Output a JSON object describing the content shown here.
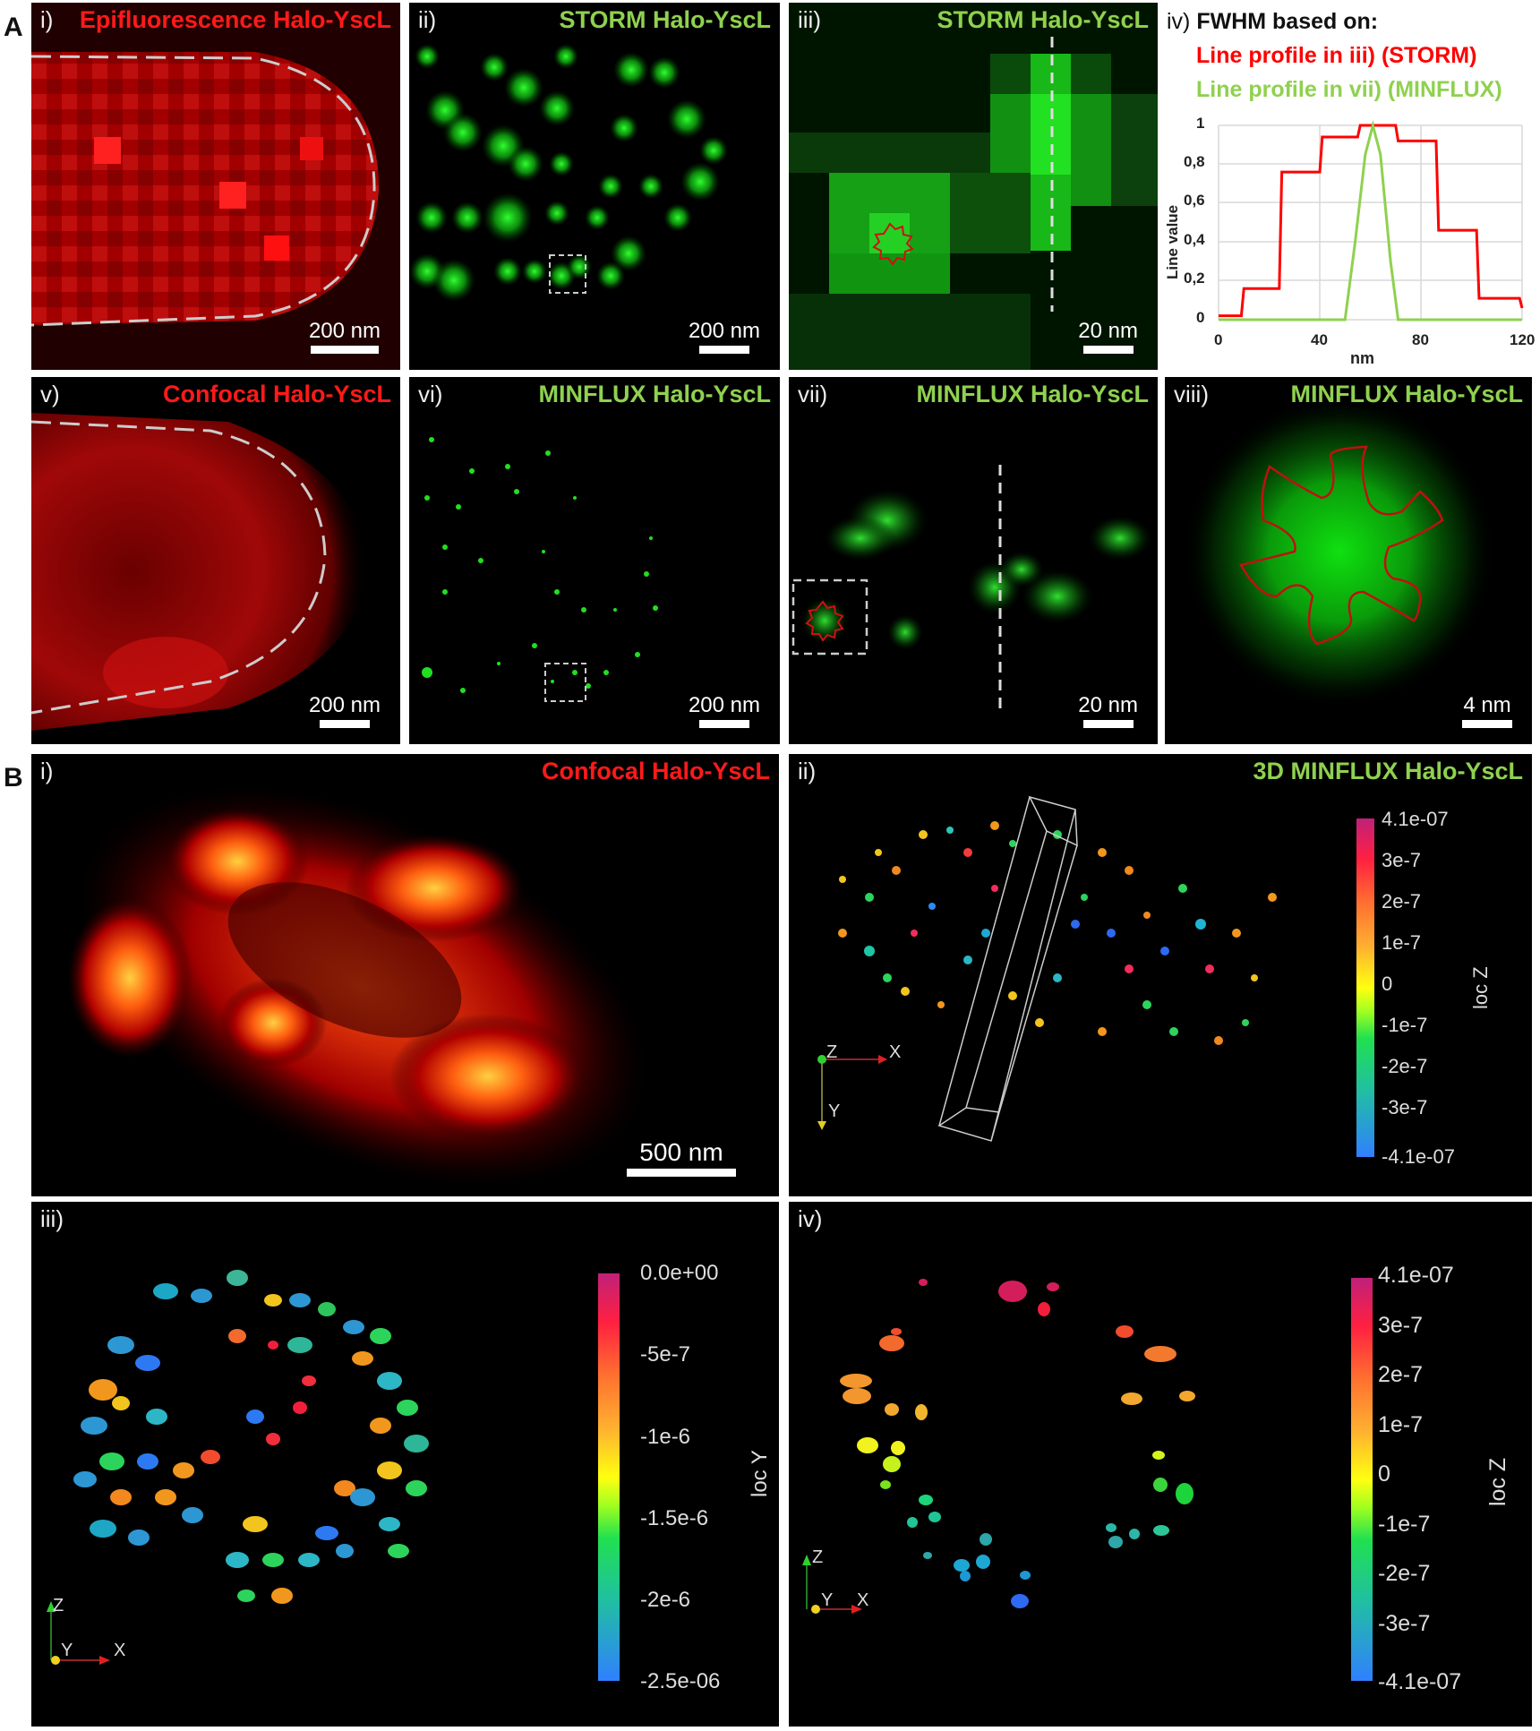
{
  "figure": {
    "section_a_label": "A",
    "section_b_label": "B"
  },
  "panels_a": [
    {
      "id": "i",
      "label": "i)",
      "title": "Epifluorescence Halo-YscL",
      "title_color": "#ff1a1a",
      "scale": "200 nm"
    },
    {
      "id": "ii",
      "label": "ii)",
      "title": "STORM Halo-YscL",
      "title_color": "#8fd14f",
      "scale": "200 nm"
    },
    {
      "id": "iii",
      "label": "iii)",
      "title": "STORM Halo-YscL",
      "title_color": "#8fd14f",
      "scale": "20 nm"
    },
    {
      "id": "v",
      "label": "v)",
      "title": "Confocal Halo-YscL",
      "title_color": "#ff1a1a",
      "scale": "200 nm"
    },
    {
      "id": "vi",
      "label": "vi)",
      "title": "MINFLUX Halo-YscL",
      "title_color": "#8fd14f",
      "scale": "200 nm"
    },
    {
      "id": "vii",
      "label": "vii)",
      "title": "MINFLUX Halo-YscL",
      "title_color": "#8fd14f",
      "scale": "20 nm"
    },
    {
      "id": "viii",
      "label": "viii)",
      "title": "MINFLUX Halo-YscL",
      "title_color": "#8fd14f",
      "scale": "4 nm"
    }
  ],
  "fwhm_panel": {
    "label": "iv)",
    "heading": "FWHM based on:",
    "line1": "Line profile in iii) (STORM)",
    "line2": "Line profile in vii) (MINFLUX)"
  },
  "chart_data": {
    "type": "line",
    "title": "FWHM based on:",
    "xlabel": "nm",
    "ylabel": "Line value",
    "xlim": [
      0,
      120
    ],
    "ylim": [
      0,
      1
    ],
    "xticks": [
      "0",
      "40",
      "80",
      "120"
    ],
    "yticks": [
      "0",
      "0,2",
      "0,4",
      "0,6",
      "0,8",
      "1"
    ],
    "grid": true,
    "series": [
      {
        "name": "Line profile in iii) (STORM)",
        "color": "#ff0000",
        "x": [
          0,
          9,
          10,
          24,
          25,
          40,
          41,
          55,
          56,
          70,
          71,
          86,
          87,
          102,
          103,
          119,
          120
        ],
        "y": [
          0.02,
          0.02,
          0.16,
          0.16,
          0.76,
          0.76,
          0.94,
          0.94,
          1.0,
          1.0,
          0.92,
          0.92,
          0.46,
          0.46,
          0.11,
          0.11,
          0.06
        ]
      },
      {
        "name": "Line profile in vii) (MINFLUX)",
        "color": "#8fd14f",
        "x": [
          0,
          50,
          54,
          58,
          61,
          64,
          68,
          71,
          120
        ],
        "y": [
          0,
          0,
          0.4,
          0.85,
          1.0,
          0.85,
          0.3,
          0,
          0
        ]
      }
    ]
  },
  "panels_b": [
    {
      "id": "i",
      "label": "i)",
      "title": "Confocal Halo-YscL",
      "title_color": "#ff1a1a",
      "scale": "500 nm"
    },
    {
      "id": "ii",
      "label": "ii)",
      "title": "3D MINFLUX Halo-YscL",
      "title_color": "#8fd14f",
      "axes": [
        "Z",
        "X",
        "Y"
      ],
      "colorbar": {
        "title": "loc Z",
        "ticks": [
          "4.1e-07",
          "3e-7",
          "2e-7",
          "1e-7",
          "0",
          "-1e-7",
          "-2e-7",
          "-3e-7",
          "-4.1e-07"
        ]
      }
    },
    {
      "id": "iii",
      "label": "iii)",
      "axes": [
        "Z",
        "Y",
        "X"
      ],
      "colorbar": {
        "title": "loc Y",
        "ticks": [
          "0.0e+00",
          "-5e-7",
          "-1e-6",
          "-1.5e-6",
          "-2e-6",
          "-2.5e-06"
        ]
      }
    },
    {
      "id": "iv",
      "label": "iv)",
      "axes": [
        "Z",
        "Y",
        "X"
      ],
      "colorbar": {
        "title": "loc Z",
        "ticks": [
          "4.1e-07",
          "3e-7",
          "2e-7",
          "1e-7",
          "0",
          "-1e-7",
          "-2e-7",
          "-3e-7",
          "-4.1e-07"
        ]
      }
    }
  ]
}
